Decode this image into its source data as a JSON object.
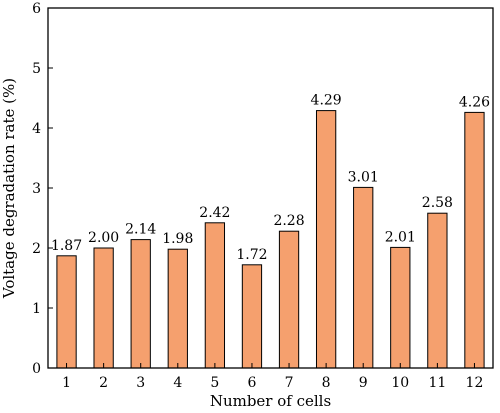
{
  "chart_data": {
    "type": "bar",
    "title": "",
    "xlabel": "Number of cells",
    "ylabel": "Voltage degradation rate (%)",
    "categories": [
      "1",
      "2",
      "3",
      "4",
      "5",
      "6",
      "7",
      "8",
      "9",
      "10",
      "11",
      "12"
    ],
    "values": [
      1.87,
      2.0,
      2.14,
      1.98,
      2.42,
      1.72,
      2.28,
      4.29,
      3.01,
      2.01,
      2.58,
      4.26
    ],
    "value_labels": [
      "1.87",
      "2.00",
      "2.14",
      "1.98",
      "2.42",
      "1.72",
      "2.28",
      "4.29",
      "3.01",
      "2.01",
      "2.58",
      "4.26"
    ],
    "ylim": [
      0,
      6
    ],
    "yticks": [
      "0",
      "1",
      "2",
      "3",
      "4",
      "5",
      "6"
    ],
    "grid": false,
    "legend": "none",
    "bar_color": "#F5A06E",
    "bar_edge_color": "#000000"
  }
}
